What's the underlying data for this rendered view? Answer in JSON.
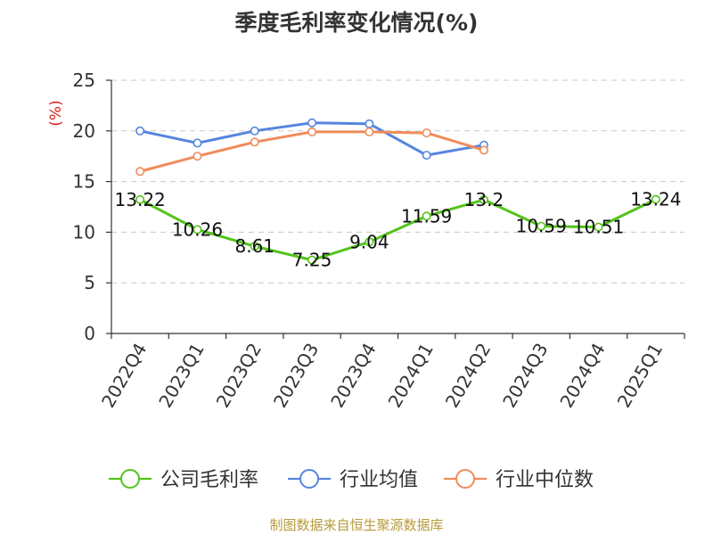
{
  "chart_data": {
    "type": "line",
    "title": "季度毛利率变化情况(%)",
    "ylabel": "(%)",
    "xlabel": "",
    "ylim": [
      0,
      25
    ],
    "yticks": [
      0,
      5,
      10,
      15,
      20,
      25
    ],
    "grid": true,
    "legend_position": "bottom",
    "categories": [
      "2022Q4",
      "2023Q1",
      "2023Q2",
      "2023Q3",
      "2023Q4",
      "2024Q1",
      "2024Q2",
      "2024Q3",
      "2024Q4",
      "2025Q1"
    ],
    "series": [
      {
        "name": "公司毛利率",
        "color": "#52c41a",
        "show_labels": true,
        "values": [
          13.22,
          10.26,
          8.61,
          7.25,
          9.04,
          11.59,
          13.2,
          10.59,
          10.51,
          13.24
        ]
      },
      {
        "name": "行业均值",
        "color": "#5585e0",
        "show_labels": false,
        "values": [
          20.0,
          18.8,
          20.0,
          20.8,
          20.7,
          17.6,
          18.6,
          null,
          null,
          null
        ]
      },
      {
        "name": "行业中位数",
        "color": "#f08c5a",
        "show_labels": false,
        "values": [
          16.0,
          17.5,
          18.9,
          19.9,
          19.9,
          19.8,
          18.1,
          null,
          null,
          null
        ]
      }
    ],
    "data_labels": [
      "13.22",
      "10.26",
      "8.61",
      "7.25",
      "9.04",
      "11.59",
      "13.2",
      "10.59",
      "10.51",
      "13.24"
    ]
  },
  "footer": {
    "source": "制图数据来自恒生聚源数据库"
  }
}
